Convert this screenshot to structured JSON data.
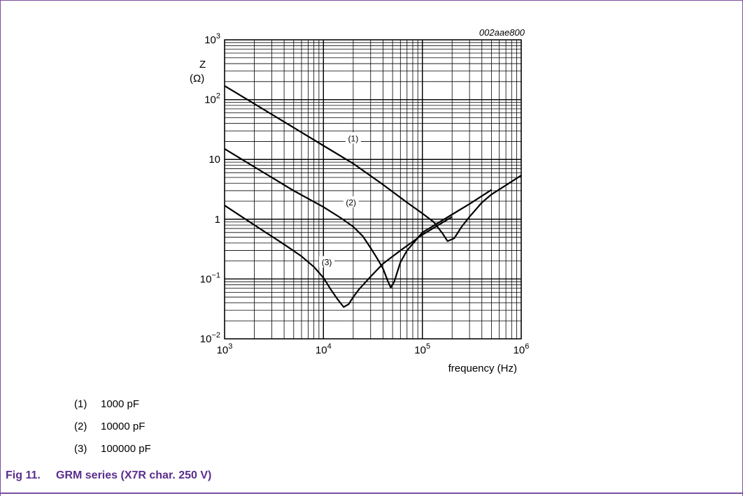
{
  "figure_id": "002aae800",
  "chart_data": {
    "type": "line",
    "xscale": "log",
    "yscale": "log",
    "xlim": [
      1000,
      1000000
    ],
    "ylim": [
      0.01,
      1000
    ],
    "xlabel": "frequency (Hz)",
    "ylabel_line1": "Z",
    "ylabel_line2": "(Ω)",
    "x_ticks": [
      {
        "base": "10",
        "exp": "3"
      },
      {
        "base": "10",
        "exp": "4"
      },
      {
        "base": "10",
        "exp": "5"
      },
      {
        "base": "10",
        "exp": "6"
      }
    ],
    "y_ticks": [
      {
        "base": "10",
        "exp": "−2"
      },
      {
        "base": "10",
        "exp": "−1"
      },
      {
        "base": "1",
        "exp": ""
      },
      {
        "base": "10",
        "exp": ""
      },
      {
        "base": "10",
        "exp": "2"
      },
      {
        "base": "10",
        "exp": "3"
      }
    ],
    "grid": true,
    "series": [
      {
        "label": "(1)",
        "points": [
          [
            1000,
            170
          ],
          [
            2000,
            85
          ],
          [
            5000,
            34
          ],
          [
            10000,
            17
          ],
          [
            20000,
            8.5
          ],
          [
            40000,
            3.8
          ],
          [
            70000,
            1.9
          ],
          [
            100000,
            1.25
          ],
          [
            130000,
            0.9
          ],
          [
            160000,
            0.58
          ],
          [
            180000,
            0.43
          ],
          [
            210000,
            0.48
          ],
          [
            250000,
            0.75
          ],
          [
            300000,
            1.1
          ],
          [
            400000,
            1.9
          ],
          [
            500000,
            2.6
          ],
          [
            700000,
            3.7
          ],
          [
            1000000,
            5.4
          ]
        ]
      },
      {
        "label": "(2)",
        "points": [
          [
            1000,
            15
          ],
          [
            2000,
            7.5
          ],
          [
            5000,
            3
          ],
          [
            10000,
            1.6
          ],
          [
            15000,
            1.05
          ],
          [
            20000,
            0.75
          ],
          [
            25000,
            0.52
          ],
          [
            30000,
            0.33
          ],
          [
            35000,
            0.22
          ],
          [
            40000,
            0.15
          ],
          [
            45000,
            0.09
          ],
          [
            48000,
            0.072
          ],
          [
            52000,
            0.09
          ],
          [
            60000,
            0.19
          ],
          [
            70000,
            0.3
          ],
          [
            100000,
            0.6
          ],
          [
            200000,
            1.2
          ],
          [
            300000,
            1.8
          ],
          [
            500000,
            3.1
          ]
        ]
      },
      {
        "label": "(3)",
        "points": [
          [
            1000,
            1.7
          ],
          [
            2000,
            0.8
          ],
          [
            4000,
            0.38
          ],
          [
            6000,
            0.24
          ],
          [
            8000,
            0.16
          ],
          [
            10000,
            0.105
          ],
          [
            12000,
            0.065
          ],
          [
            14000,
            0.045
          ],
          [
            16000,
            0.034
          ],
          [
            18000,
            0.038
          ],
          [
            20000,
            0.05
          ],
          [
            23000,
            0.068
          ],
          [
            30000,
            0.11
          ],
          [
            40000,
            0.18
          ],
          [
            60000,
            0.3
          ],
          [
            100000,
            0.55
          ],
          [
            200000,
            1.1
          ]
        ]
      }
    ],
    "annotations": [
      {
        "text": "(1)",
        "x": 20000,
        "y": 20
      },
      {
        "text": "(2)",
        "x": 19000,
        "y": 1.7
      },
      {
        "text": "(3)",
        "x": 10800,
        "y": 0.17
      }
    ]
  },
  "legend": [
    {
      "num": "(1)",
      "text": "1000 pF"
    },
    {
      "num": "(2)",
      "text": "10000 pF"
    },
    {
      "num": "(3)",
      "text": "100000 pF"
    }
  ],
  "caption": {
    "fig": "Fig 11.",
    "title": "GRM series (X7R char. 250 V)"
  }
}
